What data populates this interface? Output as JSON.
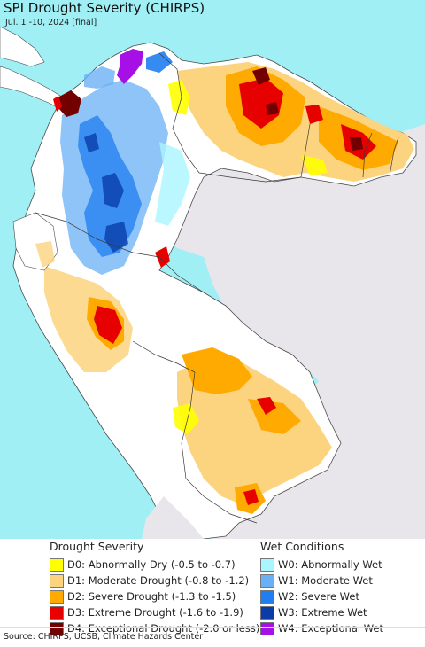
{
  "header": {
    "title": "SPI Drought Severity (CHIRPS)",
    "subtitle": "Jul. 1 -10, 2024 [final]"
  },
  "colors": {
    "ocean": "#9feff4",
    "outside_land": "#e8e6ea",
    "normal": "#ffffff",
    "borders": "#4a4a4a"
  },
  "legend": {
    "drought": {
      "heading": "Drought Severity",
      "items": [
        {
          "label": "D0: Abnormally Dry (-0.5 to -0.7)",
          "color": "#ffff00"
        },
        {
          "label": "D1: Moderate Drought (-0.8 to -1.2)",
          "color": "#fcd37f"
        },
        {
          "label": "D2: Severe Drought (-1.3 to -1.5)",
          "color": "#ffaa00"
        },
        {
          "label": "D3: Extreme Drought (-1.6 to -1.9)",
          "color": "#e60000"
        },
        {
          "label": "D4: Exceptional Drought (-2.0 or less)",
          "color": "#730000"
        }
      ]
    },
    "wet": {
      "heading": "Wet Conditions",
      "items": [
        {
          "label": "W0: Abnormally Wet",
          "color": "#aaf5ff"
        },
        {
          "label": "W1: Moderate Wet",
          "color": "#6ab0f5"
        },
        {
          "label": "W2: Severe Wet",
          "color": "#1f7ef0"
        },
        {
          "label": "W3: Extreme Wet",
          "color": "#0a3ca8"
        },
        {
          "label": "W4: Exceptional Wet",
          "color": "#a60fe6"
        }
      ]
    }
  },
  "footer": {
    "source": "Source: CHIRPS, UCSB, Climate Hazards Center"
  }
}
